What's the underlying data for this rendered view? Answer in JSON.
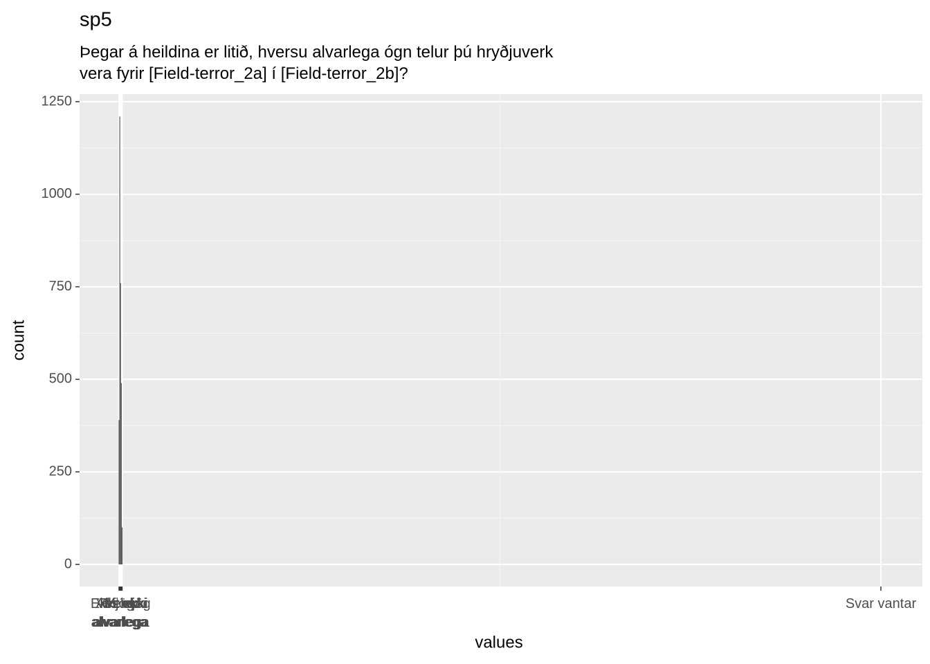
{
  "chart_data": {
    "type": "bar",
    "title": "sp5",
    "subtitle": "Þegar á heildina er litið, hversu alvarlega ógn telur þú hryðjuverk\nvera fyrir [Field-terror_2a] í [Field-terror_2b]?",
    "x_label": "values",
    "y_label": "count",
    "x": [
      1,
      2,
      3,
      4,
      5,
      999
    ],
    "categories": [
      "Mjög\nalvarlega",
      "Frekar\nalvarlega",
      "Ekki mjög\nalvarlega",
      "Alls ekki\nalvarlega",
      "Veit ekki",
      "Svar vantar"
    ],
    "values": [
      390,
      1210,
      760,
      490,
      100,
      0
    ],
    "color": "#595959",
    "xlim": [
      -50.7,
      1053.4
    ],
    "ylim": [
      -59.8,
      1270.6
    ],
    "yticks": [
      0,
      250,
      500,
      750,
      1000,
      1250
    ],
    "grid": true
  }
}
